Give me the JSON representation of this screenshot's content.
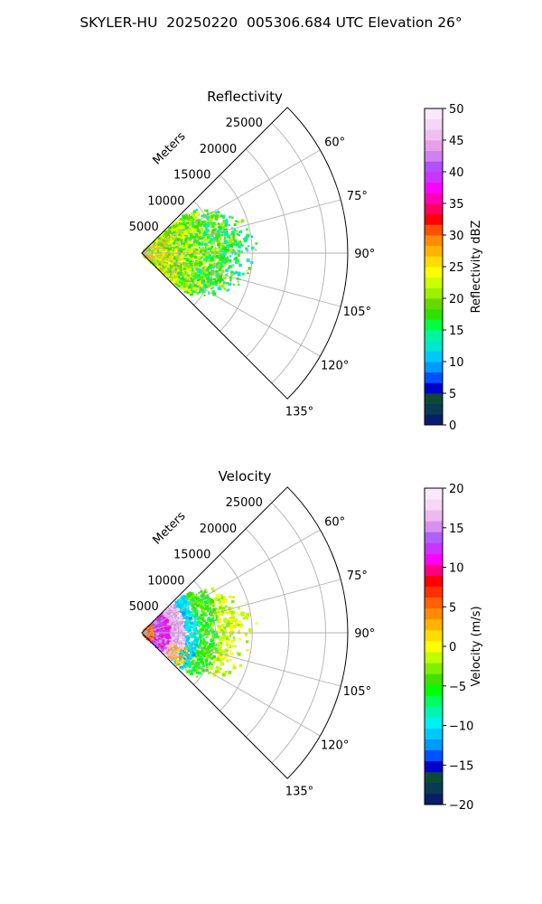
{
  "suptitle": "SKYLER-HU  20250220  005306.684 UTC Elevation 26°",
  "chart_data": [
    {
      "type": "polar-sector",
      "title": "Reflectivity",
      "radial_label": "Meters",
      "radial_ticks": [
        5000,
        10000,
        15000,
        20000,
        25000
      ],
      "radial_tick_labels": [
        "5000",
        "10000",
        "15000",
        "20000",
        "25000"
      ],
      "rlim": [
        0,
        28000
      ],
      "theta_range_deg": [
        45,
        135
      ],
      "theta_ticks": [
        60,
        75,
        90,
        105,
        120,
        135
      ],
      "theta_tick_labels": [
        "60°",
        "75°",
        "90°",
        "105°",
        "120°",
        "135°"
      ],
      "grid": true,
      "echo_extent_m": 14000,
      "colorbar": {
        "label": "Reflectivity dBZ",
        "range": [
          0,
          50
        ],
        "ticks": [
          0,
          5,
          10,
          15,
          20,
          25,
          30,
          35,
          40,
          45,
          50
        ],
        "tick_labels": [
          "0",
          "5",
          "10",
          "15",
          "20",
          "25",
          "30",
          "35",
          "40",
          "45",
          "50"
        ]
      },
      "colormap": [
        "#0a1d6b",
        "#083a52",
        "#0c4a36",
        "#0000cc",
        "#0050ff",
        "#0099ff",
        "#00c8ff",
        "#00e8cc",
        "#00f5a0",
        "#00ff40",
        "#30e000",
        "#66d900",
        "#9cf000",
        "#ccff00",
        "#ffff00",
        "#ffdd00",
        "#ffb400",
        "#ff8c00",
        "#ff5000",
        "#ff0000",
        "#ff0060",
        "#ff00b4",
        "#ff00ff",
        "#cc33ff",
        "#b050ff",
        "#d080f0",
        "#e6a0ea",
        "#f0bff0",
        "#f6d6f6",
        "#fce8fc"
      ]
    },
    {
      "type": "polar-sector",
      "title": "Velocity",
      "radial_label": "Meters",
      "radial_ticks": [
        5000,
        10000,
        15000,
        20000,
        25000
      ],
      "radial_tick_labels": [
        "5000",
        "10000",
        "15000",
        "20000",
        "25000"
      ],
      "rlim": [
        0,
        28000
      ],
      "theta_range_deg": [
        45,
        135
      ],
      "theta_ticks": [
        60,
        75,
        90,
        105,
        120,
        135
      ],
      "theta_tick_labels": [
        "60°",
        "75°",
        "90°",
        "105°",
        "120°",
        "135°"
      ],
      "grid": true,
      "echo_extent_m": 14000,
      "colorbar": {
        "label": "Velocity (m/s)",
        "range": [
          -20,
          20
        ],
        "ticks": [
          -20,
          -15,
          -10,
          -5,
          0,
          5,
          10,
          15,
          20
        ],
        "tick_labels": [
          "−20",
          "−15",
          "−10",
          "−5",
          "0",
          "5",
          "10",
          "15",
          "20"
        ]
      },
      "colormap": [
        "#0a1d6b",
        "#083a52",
        "#0c4a36",
        "#0000cc",
        "#0050ff",
        "#0099ff",
        "#00c8ff",
        "#00f0f0",
        "#00f5b0",
        "#00ff60",
        "#00ff00",
        "#40e000",
        "#80f000",
        "#bfff00",
        "#ffff00",
        "#ffdd00",
        "#ffb400",
        "#ff8c00",
        "#ff6000",
        "#ff3000",
        "#ff0000",
        "#ff0080",
        "#ff00ff",
        "#cc33ff",
        "#b060ff",
        "#d890f0",
        "#eeb8f0",
        "#f6d8f6",
        "#fce8fc"
      ]
    }
  ]
}
